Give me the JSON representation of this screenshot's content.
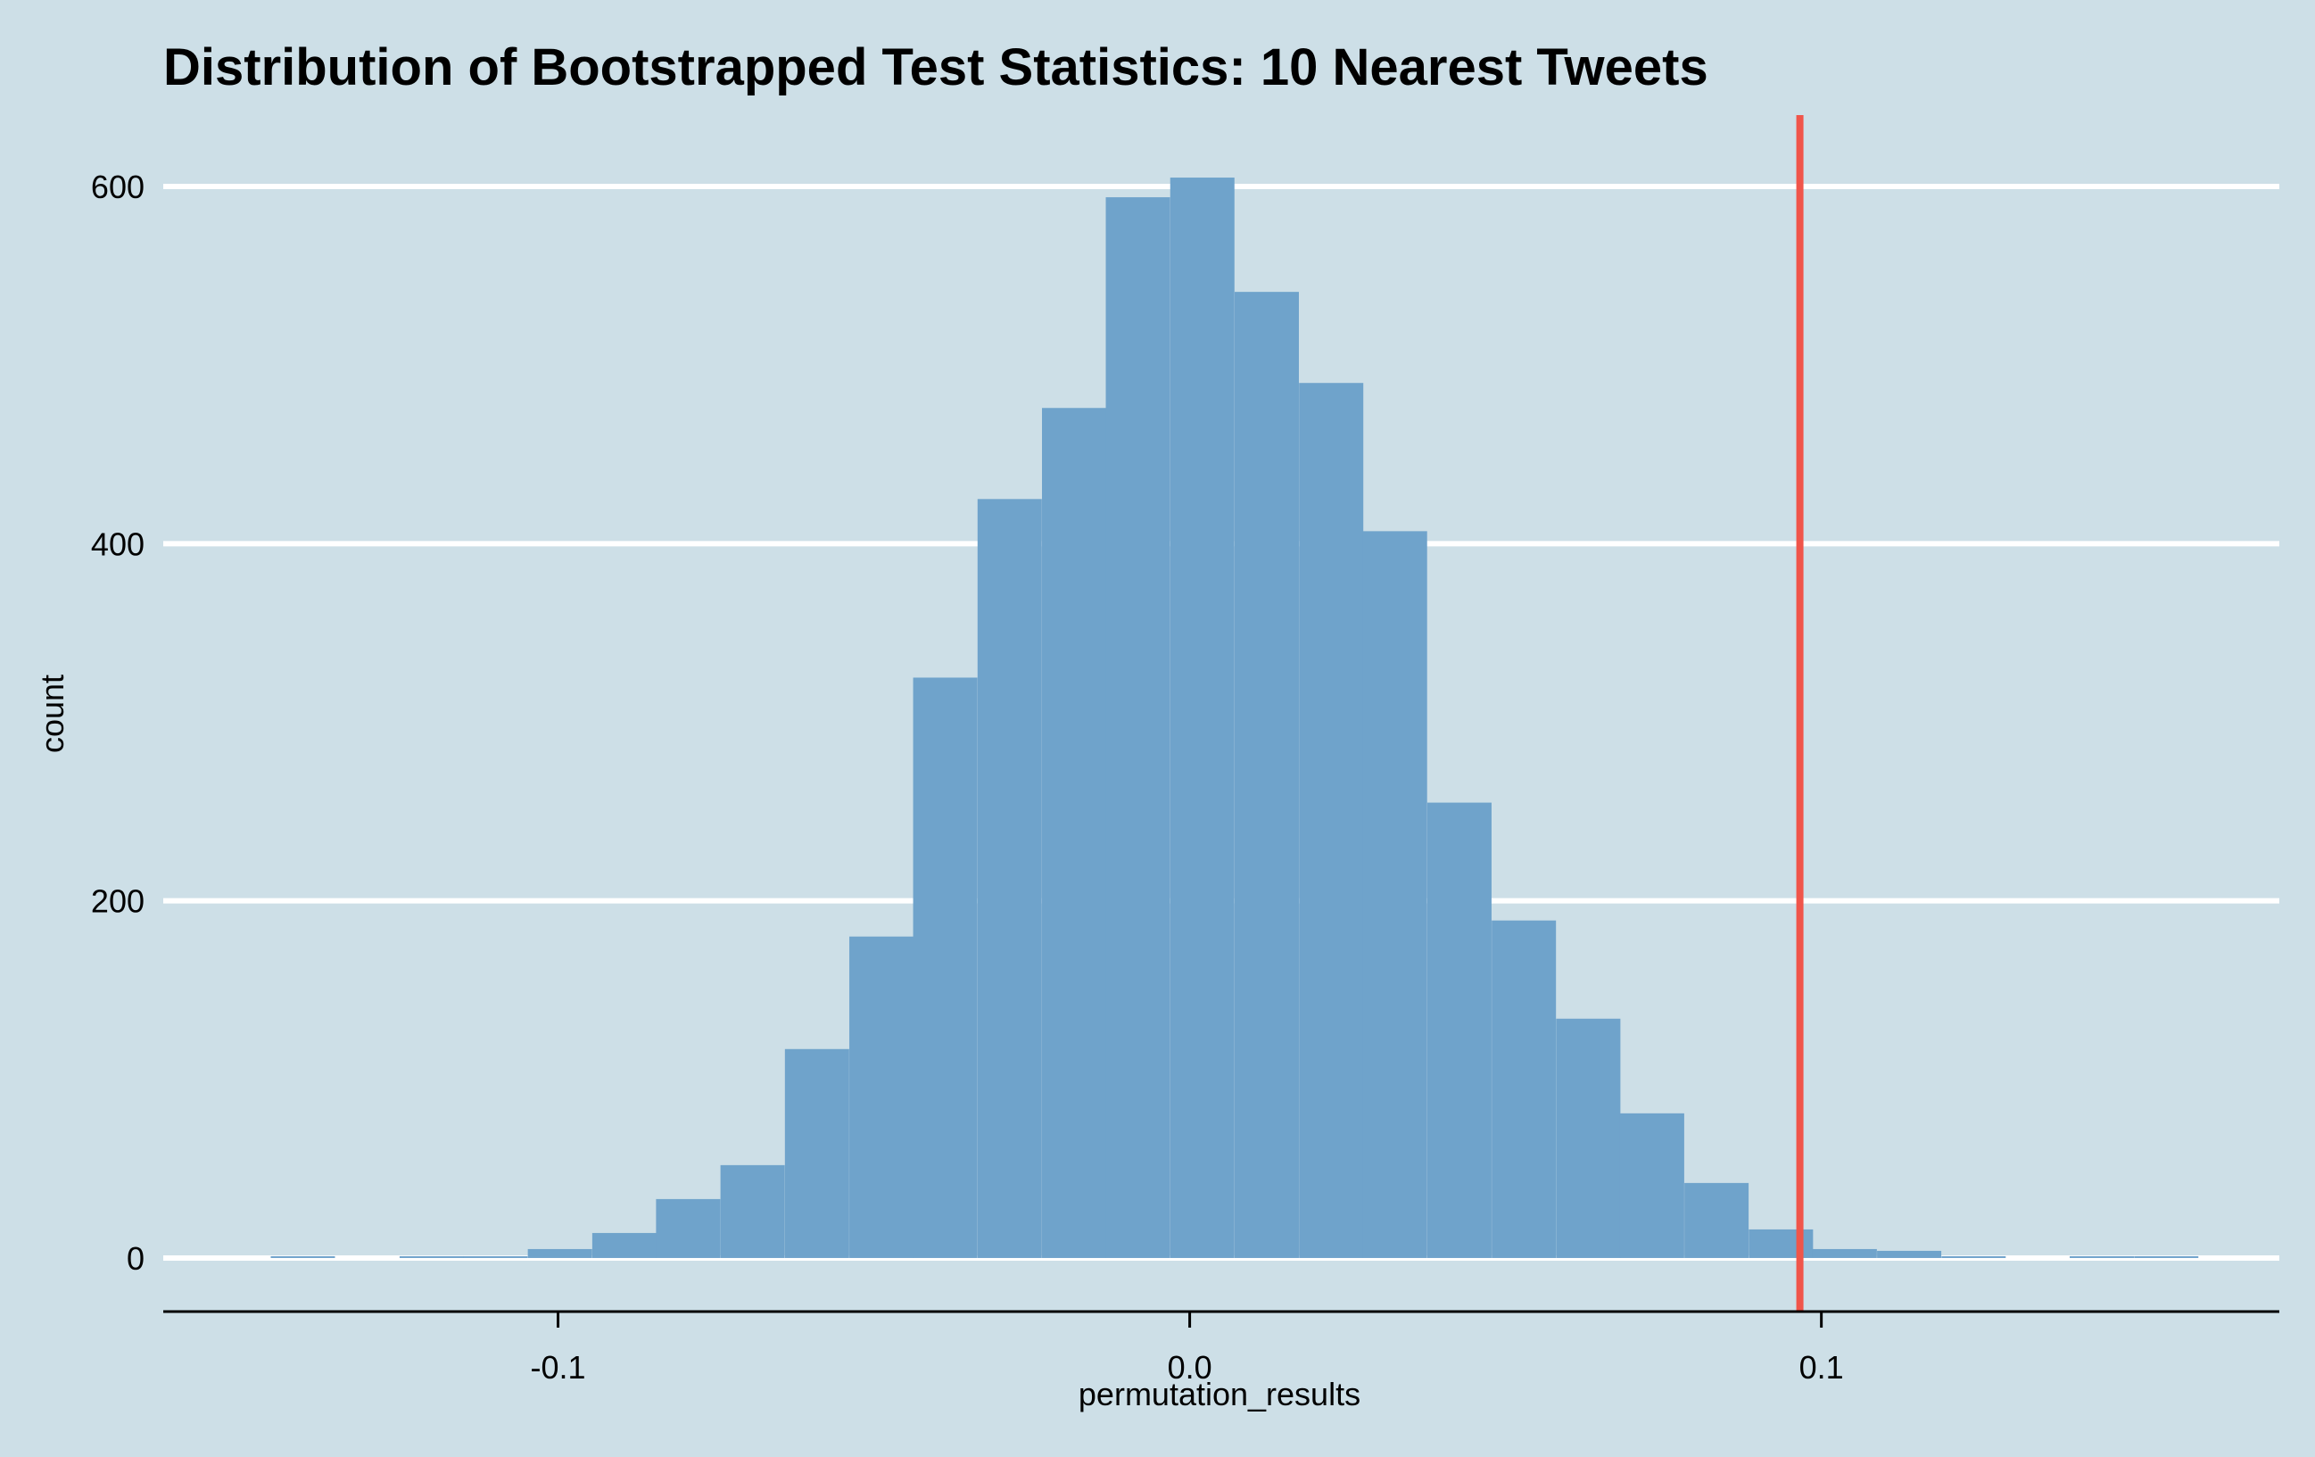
{
  "chart_data": {
    "type": "bar",
    "title": "Distribution of Bootstrapped Test Statistics: 10 Nearest Tweets",
    "xlabel": "permutation_results",
    "ylabel": "count",
    "xlim": [
      -0.1625,
      0.1725
    ],
    "ylim": [
      -30,
      640
    ],
    "bin_width": 0.01017,
    "bins": [
      {
        "x": -0.1404,
        "count": 1
      },
      {
        "x": -0.1302,
        "count": 0
      },
      {
        "x": -0.12,
        "count": 1
      },
      {
        "x": -0.1099,
        "count": 1
      },
      {
        "x": -0.0997,
        "count": 5
      },
      {
        "x": -0.0895,
        "count": 14
      },
      {
        "x": -0.0794,
        "count": 33
      },
      {
        "x": -0.0692,
        "count": 52
      },
      {
        "x": -0.059,
        "count": 117
      },
      {
        "x": -0.0488,
        "count": 180
      },
      {
        "x": -0.0387,
        "count": 325
      },
      {
        "x": -0.0285,
        "count": 425
      },
      {
        "x": -0.0183,
        "count": 476
      },
      {
        "x": -0.0082,
        "count": 594
      },
      {
        "x": 0.002,
        "count": 605
      },
      {
        "x": 0.0122,
        "count": 541
      },
      {
        "x": 0.0224,
        "count": 490
      },
      {
        "x": 0.0325,
        "count": 407
      },
      {
        "x": 0.0427,
        "count": 255
      },
      {
        "x": 0.0529,
        "count": 189
      },
      {
        "x": 0.0631,
        "count": 134
      },
      {
        "x": 0.0732,
        "count": 81
      },
      {
        "x": 0.0834,
        "count": 42
      },
      {
        "x": 0.0936,
        "count": 16
      },
      {
        "x": 0.1037,
        "count": 5
      },
      {
        "x": 0.1139,
        "count": 4
      },
      {
        "x": 0.1241,
        "count": 1
      },
      {
        "x": 0.1342,
        "count": 0
      },
      {
        "x": 0.1444,
        "count": 1
      },
      {
        "x": 0.1546,
        "count": 1
      }
    ],
    "x_ticks": [
      {
        "value": -0.1,
        "label": "-0.1"
      },
      {
        "value": 0.0,
        "label": "0.0"
      },
      {
        "value": 0.1,
        "label": "0.1"
      }
    ],
    "y_ticks": [
      {
        "value": 0,
        "label": "0"
      },
      {
        "value": 200,
        "label": "200"
      },
      {
        "value": 400,
        "label": "400"
      },
      {
        "value": 600,
        "label": "600"
      }
    ],
    "observed_statistic": 0.0966,
    "grid": "horizontal",
    "colors": {
      "background": "#cddfe7",
      "bars": "#6fa3cb",
      "grid": "#ffffff",
      "reference_line": "#f0554a"
    }
  }
}
